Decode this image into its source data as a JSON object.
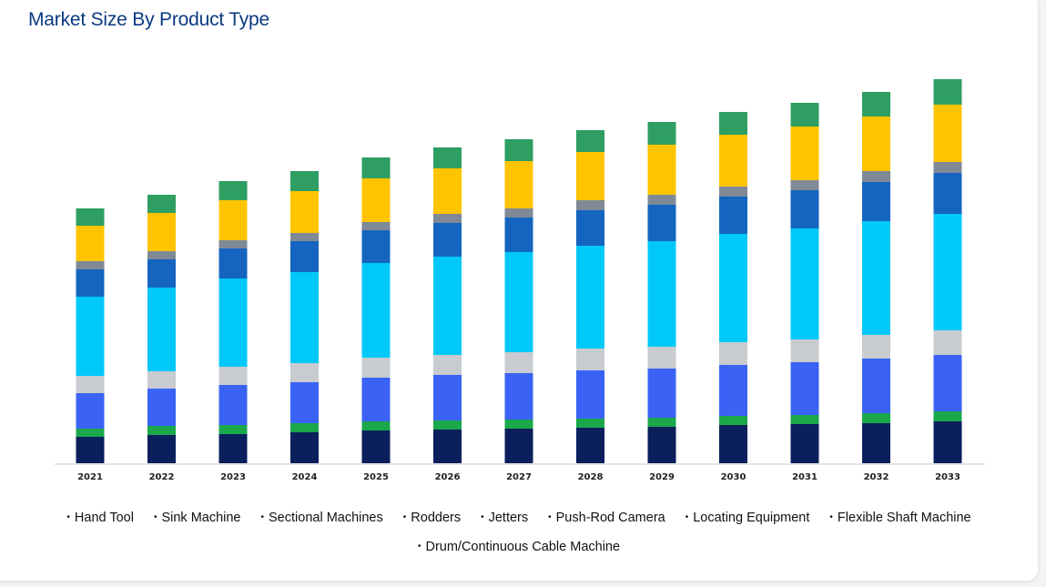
{
  "title": "Market Size By Product Type",
  "chart_data": {
    "type": "bar",
    "stacked": true,
    "title": "Market Size By Product Type",
    "xlabel": "",
    "ylabel": "",
    "grid": false,
    "legend_position": "bottom",
    "categories": [
      "2021",
      "2022",
      "2023",
      "2024",
      "2025",
      "2026",
      "2027",
      "2028",
      "2029",
      "2030",
      "2031",
      "2032",
      "2033"
    ],
    "series": [
      {
        "name": "Hand Tool",
        "color": "#0a1f5c",
        "values": [
          29,
          31,
          32,
          34,
          36,
          37,
          38,
          39,
          40,
          42,
          43,
          44,
          46
        ]
      },
      {
        "name": "Sink Machine",
        "color": "#1aa84b",
        "values": [
          9,
          10,
          10,
          10,
          10,
          10,
          10,
          10,
          10,
          10,
          10,
          11,
          11
        ]
      },
      {
        "name": "Sectional Machines",
        "color": "#3a63f5",
        "values": [
          39,
          41,
          44,
          45,
          48,
          50,
          51,
          53,
          54,
          56,
          58,
          60,
          62
        ]
      },
      {
        "name": "Rodders",
        "color": "#c8cbd0",
        "values": [
          19,
          19,
          20,
          21,
          22,
          22,
          23,
          24,
          24,
          25,
          25,
          26,
          27
        ]
      },
      {
        "name": "Jetters",
        "color": "#00c8f8",
        "values": [
          87,
          92,
          97,
          100,
          104,
          108,
          110,
          113,
          116,
          119,
          122,
          125,
          128
        ]
      },
      {
        "name": "Push-Rod Camera",
        "color": "#1565c0",
        "values": [
          30,
          31,
          33,
          34,
          36,
          37,
          38,
          39,
          40,
          41,
          42,
          43,
          45
        ]
      },
      {
        "name": "Locating Equipment",
        "color": "#7f8a96",
        "values": [
          9,
          9,
          9,
          9,
          9,
          10,
          10,
          11,
          11,
          11,
          11,
          12,
          12
        ]
      },
      {
        "name": "Flexible Shaft Machine",
        "color": "#ffc400",
        "values": [
          39,
          42,
          44,
          46,
          48,
          50,
          52,
          53,
          55,
          57,
          59,
          60,
          63
        ]
      },
      {
        "name": "Drum/Continuous Cable Machine",
        "color": "#2e9e62",
        "values": [
          19,
          20,
          21,
          22,
          23,
          23,
          24,
          24,
          25,
          25,
          26,
          27,
          28
        ]
      }
    ]
  }
}
